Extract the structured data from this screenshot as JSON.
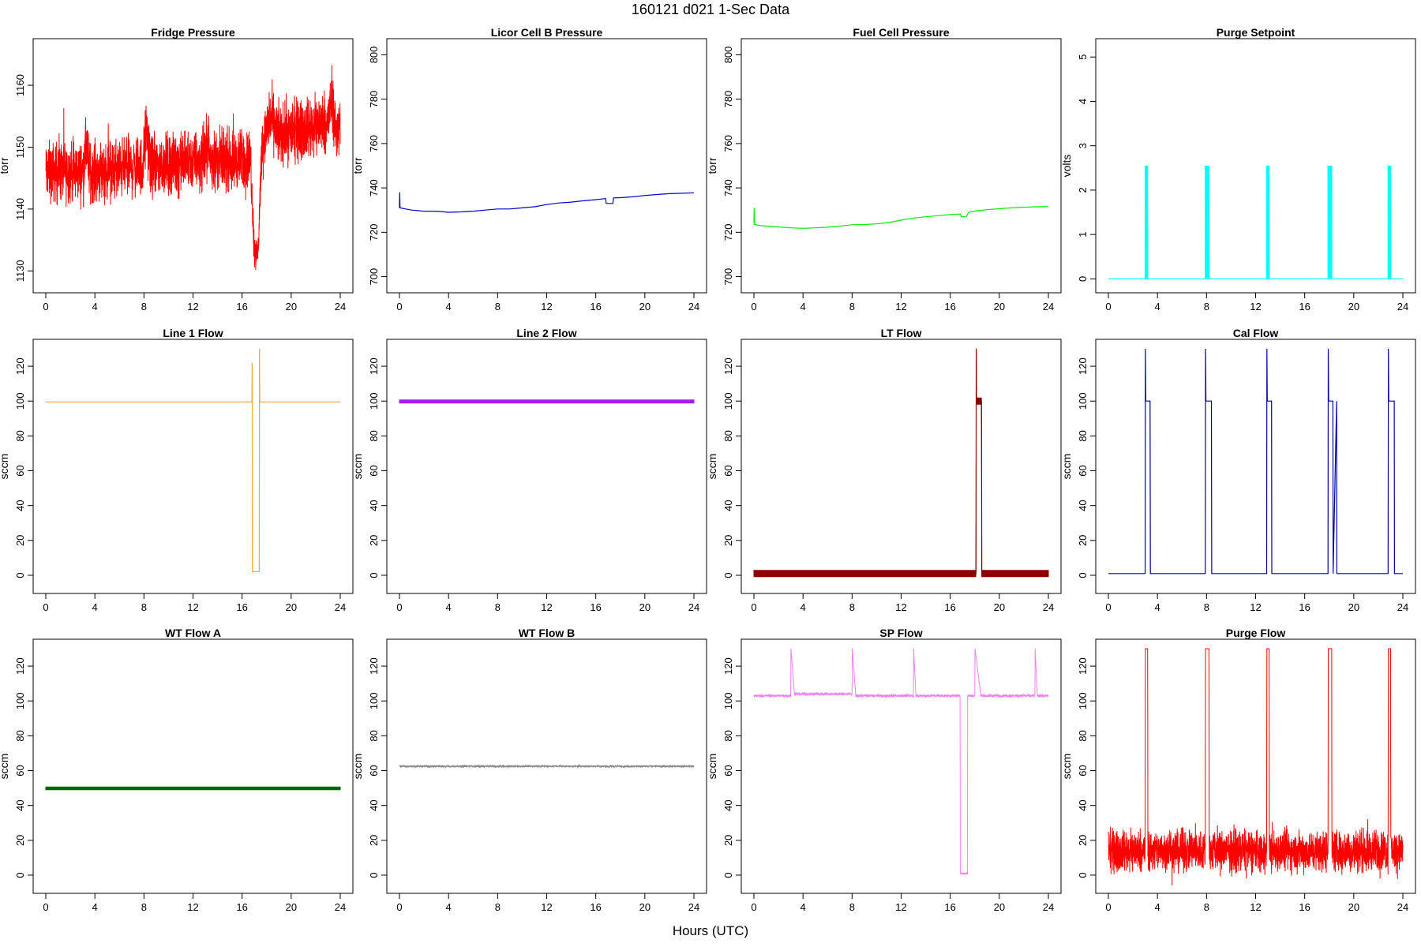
{
  "figure": {
    "title": "160121    d021    1-Sec Data",
    "xlabel": "Hours (UTC)"
  },
  "chart_data": [
    {
      "type": "line",
      "title": "Fridge Pressure",
      "ylabel": "torr",
      "color": "#ff0000",
      "style": "noise",
      "xlim": [
        0,
        24
      ],
      "xticks": [
        0,
        4,
        8,
        12,
        16,
        20,
        24
      ],
      "ylim": [
        1128,
        1166
      ],
      "yticks": [
        1130,
        1140,
        1150,
        1160
      ],
      "series": [
        {
          "x": [
            0,
            3,
            3.3,
            3.6,
            7.9,
            8.2,
            8.5,
            12.9,
            13.2,
            13.4,
            16.7,
            17,
            17.3,
            17.6,
            17.9,
            18.3,
            19,
            23,
            23.3,
            23.6,
            24
          ],
          "y": [
            1146,
            1146,
            1150,
            1146,
            1147,
            1153,
            1147,
            1148,
            1151,
            1148,
            1148,
            1133,
            1133,
            1150,
            1152,
            1155,
            1152,
            1154,
            1158,
            1153,
            1153
          ],
          "amp": [
            7,
            7,
            7,
            7,
            7,
            7,
            7,
            7,
            7,
            7,
            7,
            4,
            4,
            6,
            7,
            7,
            7,
            7,
            7,
            7,
            7
          ]
        }
      ]
    },
    {
      "type": "line",
      "title": "Licor Cell B Pressure",
      "ylabel": "torr",
      "color": "#0000cc",
      "style": "line",
      "xlim": [
        0,
        24
      ],
      "xticks": [
        0,
        4,
        8,
        12,
        16,
        20,
        24
      ],
      "ylim": [
        697,
        803
      ],
      "yticks": [
        700,
        720,
        740,
        760,
        780,
        800
      ],
      "series": [
        {
          "x": [
            0,
            0.02,
            0.05,
            0.5,
            1,
            2,
            3,
            4,
            5,
            6,
            7,
            8,
            9,
            10,
            11,
            12,
            13,
            14,
            15,
            16,
            16.8,
            16.85,
            17.4,
            17.45,
            18,
            19,
            20,
            21,
            22,
            23,
            24
          ],
          "y": [
            731,
            738,
            731,
            730.5,
            730,
            729.5,
            729.5,
            729,
            729.2,
            729.5,
            730,
            730.5,
            730.5,
            731,
            731.5,
            732.5,
            733.2,
            733.6,
            734.2,
            734.7,
            735.2,
            733,
            733,
            735.5,
            735.6,
            736,
            736.6,
            737,
            737.4,
            737.6,
            737.8
          ]
        }
      ]
    },
    {
      "type": "line",
      "title": "Fuel Cell Pressure",
      "ylabel": "torr",
      "color": "#00ee00",
      "style": "line",
      "xlim": [
        0,
        24
      ],
      "xticks": [
        0,
        4,
        8,
        12,
        16,
        20,
        24
      ],
      "ylim": [
        697,
        803
      ],
      "yticks": [
        700,
        720,
        740,
        760,
        780,
        800
      ],
      "series": [
        {
          "x": [
            0,
            0.02,
            0.05,
            0.5,
            1,
            2,
            3,
            4,
            5,
            6,
            7,
            8,
            9,
            10,
            11,
            12,
            13,
            14,
            15,
            16,
            16.8,
            16.9,
            17.3,
            17.5,
            18,
            19,
            20,
            21,
            22,
            23,
            24
          ],
          "y": [
            724,
            731,
            723.5,
            723,
            722.8,
            722.4,
            722,
            721.8,
            722,
            722.3,
            722.8,
            723.4,
            723.5,
            723.8,
            724.4,
            725.5,
            726.4,
            727,
            727.5,
            728,
            728.2,
            727,
            727,
            729,
            729.6,
            730.2,
            730.6,
            731,
            731.3,
            731.5,
            731.6
          ]
        }
      ]
    },
    {
      "type": "line",
      "title": "Purge Setpoint",
      "ylabel": "volts",
      "color": "#00ffff",
      "style": "pulses",
      "xlim": [
        0,
        24
      ],
      "xticks": [
        0,
        4,
        8,
        12,
        16,
        20,
        24
      ],
      "ylim": [
        -0.1,
        5.2
      ],
      "yticks": [
        0,
        1,
        2,
        3,
        4,
        5
      ],
      "series": [
        {
          "baseline": 0,
          "pulses": [
            {
              "start": 3.0,
              "end": 3.2,
              "level": 2.5
            },
            {
              "start": 7.9,
              "end": 8.2,
              "level": 2.5
            },
            {
              "start": 12.9,
              "end": 13.1,
              "level": 2.5
            },
            {
              "start": 17.9,
              "end": 18.2,
              "level": 2.5
            },
            {
              "start": 22.8,
              "end": 23.0,
              "level": 2.5
            }
          ]
        }
      ]
    },
    {
      "type": "line",
      "title": "Line 1 Flow",
      "ylabel": "sccm",
      "color": "#f5a623",
      "style": "line",
      "xlim": [
        0,
        24
      ],
      "xticks": [
        0,
        4,
        8,
        12,
        16,
        20,
        24
      ],
      "ylim": [
        -5,
        130
      ],
      "yticks": [
        0,
        20,
        40,
        60,
        80,
        100,
        120
      ],
      "series": [
        {
          "x": [
            0,
            16.8,
            16.82,
            16.84,
            16.86,
            17.4,
            17.42,
            17.44,
            17.46,
            24
          ],
          "y": [
            99.5,
            99.5,
            122,
            2,
            2,
            2,
            130,
            99.5,
            99.5,
            99.5
          ]
        }
      ]
    },
    {
      "type": "line",
      "title": "Line 2 Flow",
      "ylabel": "sccm",
      "color": "#a020f0",
      "style": "band",
      "xlim": [
        0,
        24
      ],
      "xticks": [
        0,
        4,
        8,
        12,
        16,
        20,
        24
      ],
      "ylim": [
        -5,
        130
      ],
      "yticks": [
        0,
        20,
        40,
        60,
        80,
        100,
        120
      ],
      "series": [
        {
          "x": [
            0,
            24
          ],
          "y": [
            99.8,
            99.8
          ],
          "amp": [
            0.9,
            0.9
          ]
        }
      ]
    },
    {
      "type": "line",
      "title": "LT Flow",
      "ylabel": "sccm",
      "color": "#8b0000",
      "style": "band",
      "xlim": [
        0,
        24
      ],
      "xticks": [
        0,
        4,
        8,
        12,
        16,
        20,
        24
      ],
      "ylim": [
        -5,
        130
      ],
      "yticks": [
        0,
        20,
        40,
        60,
        80,
        100,
        120
      ],
      "series": [
        {
          "x": [
            0,
            18.1,
            18.12,
            18.14,
            18.55,
            18.57,
            24
          ],
          "y": [
            1,
            1,
            130,
            100,
            100,
            1,
            1
          ],
          "amp": [
            1.8,
            1.8,
            0.2,
            1.8,
            1.8,
            1.8,
            1.8
          ]
        }
      ]
    },
    {
      "type": "line",
      "title": "Cal Flow",
      "ylabel": "sccm",
      "color": "#0000aa",
      "style": "line",
      "xlim": [
        0,
        24
      ],
      "xticks": [
        0,
        4,
        8,
        12,
        16,
        20,
        24
      ],
      "ylim": [
        -5,
        130
      ],
      "yticks": [
        0,
        20,
        40,
        60,
        80,
        100,
        120
      ],
      "series": [
        {
          "x": [
            0,
            3,
            3.02,
            3.05,
            3.4,
            3.42,
            7.9,
            7.92,
            7.95,
            8.4,
            8.42,
            12.9,
            12.92,
            12.95,
            13.3,
            13.32,
            17.9,
            17.92,
            17.95,
            18.3,
            18.32,
            18.6,
            18.62,
            22.8,
            22.82,
            22.85,
            23.3,
            23.32,
            24
          ],
          "y": [
            1,
            1,
            130,
            100,
            100,
            1,
            1,
            130,
            100,
            100,
            1,
            1,
            130,
            100,
            100,
            1,
            1,
            130,
            100,
            100,
            1,
            100,
            1,
            1,
            130,
            100,
            100,
            1,
            1
          ]
        }
      ]
    },
    {
      "type": "line",
      "title": "WT Flow A",
      "ylabel": "sccm",
      "color": "#006400",
      "style": "band",
      "xlim": [
        0,
        24
      ],
      "xticks": [
        0,
        4,
        8,
        12,
        16,
        20,
        24
      ],
      "ylim": [
        -5,
        130
      ],
      "yticks": [
        0,
        20,
        40,
        60,
        80,
        100,
        120
      ],
      "series": [
        {
          "x": [
            0,
            24
          ],
          "y": [
            49.8,
            49.8
          ],
          "amp": [
            0.8,
            0.8
          ]
        }
      ]
    },
    {
      "type": "line",
      "title": "WT Flow B",
      "ylabel": "sccm",
      "color": "#888888",
      "style": "noise",
      "xlim": [
        0,
        24
      ],
      "xticks": [
        0,
        4,
        8,
        12,
        16,
        20,
        24
      ],
      "ylim": [
        -5,
        130
      ],
      "yticks": [
        0,
        20,
        40,
        60,
        80,
        100,
        120
      ],
      "series": [
        {
          "x": [
            0,
            24
          ],
          "y": [
            62.5,
            62.5
          ],
          "amp": [
            0.8,
            0.8
          ]
        }
      ]
    },
    {
      "type": "line",
      "title": "SP Flow",
      "ylabel": "sccm",
      "color": "#ee82ee",
      "style": "noise",
      "xlim": [
        0,
        24
      ],
      "xticks": [
        0,
        4,
        8,
        12,
        16,
        20,
        24
      ],
      "ylim": [
        -5,
        130
      ],
      "yticks": [
        0,
        20,
        40,
        60,
        80,
        100,
        120
      ],
      "series": [
        {
          "x": [
            0,
            3,
            3.02,
            3.3,
            3.32,
            8,
            8.02,
            8.3,
            8.32,
            13,
            13.02,
            13.2,
            13.22,
            16.8,
            16.82,
            17.4,
            17.42,
            18,
            18.02,
            18.5,
            18.52,
            22.9,
            22.92,
            23.1,
            23.12,
            24
          ],
          "y": [
            103,
            103,
            130,
            104,
            104,
            104,
            130,
            103,
            103,
            103,
            130,
            103,
            103,
            103,
            1,
            1,
            103,
            103,
            130,
            103,
            103,
            103,
            130,
            103,
            103,
            103
          ],
          "amp": [
            1.2,
            1.2,
            0.2,
            1.2,
            1.2,
            1.2,
            0.2,
            1.2,
            1.2,
            1.2,
            0.2,
            1.2,
            1.2,
            1.2,
            0.8,
            0.8,
            1.2,
            1.2,
            0.2,
            1.2,
            1.2,
            1.2,
            0.2,
            1.2,
            1.2,
            1.2
          ]
        }
      ]
    },
    {
      "type": "line",
      "title": "Purge Flow",
      "ylabel": "sccm",
      "color": "#ff0000",
      "style": "noise",
      "xlim": [
        0,
        24
      ],
      "xticks": [
        0,
        4,
        8,
        12,
        16,
        20,
        24
      ],
      "ylim": [
        -5,
        130
      ],
      "yticks": [
        0,
        20,
        40,
        60,
        80,
        100,
        120
      ],
      "series": [
        {
          "x": [
            0,
            3,
            3.02,
            3.2,
            3.22,
            7.9,
            7.92,
            8.2,
            8.22,
            12.9,
            12.92,
            13.1,
            13.12,
            17.9,
            17.92,
            18.2,
            18.22,
            22.8,
            22.82,
            23,
            23.02,
            24
          ],
          "y": [
            14,
            14,
            130,
            130,
            14,
            14,
            130,
            130,
            14,
            14,
            130,
            130,
            14,
            14,
            130,
            130,
            14,
            14,
            130,
            130,
            14,
            14
          ],
          "amp": [
            17,
            17,
            0,
            0,
            17,
            17,
            0,
            0,
            17,
            17,
            0,
            0,
            17,
            17,
            0,
            0,
            17,
            17,
            0,
            0,
            17,
            17
          ]
        }
      ]
    }
  ]
}
